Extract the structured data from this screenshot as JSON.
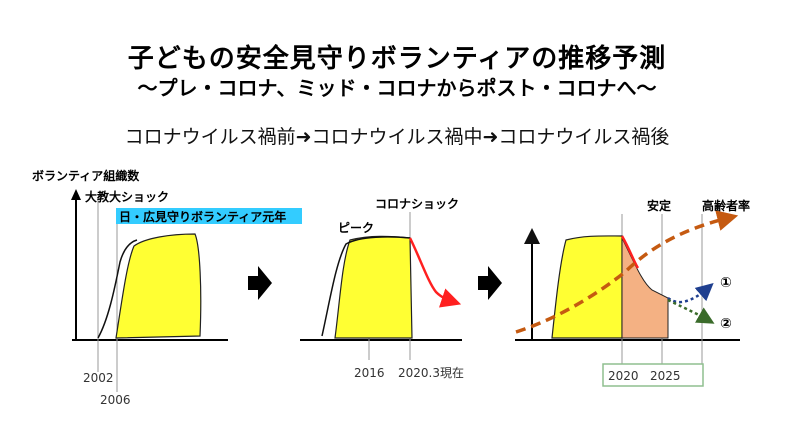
{
  "header": {
    "title": "子どもの安全見守りボランティアの推移予測",
    "subtitle": "〜プレ・コロナ、ミッド・コロナからポスト・コロナへ〜",
    "flow": "コロナウイルス禍前➜コロナウイルス禍中➜コロナウイルス禍後"
  },
  "panel1": {
    "ylabel": "ボランティア組織数",
    "event_label": "大教大ショック",
    "highlight_label": "日・広見守りボランティア元年",
    "tick_2002": "2002",
    "tick_2006": "2006"
  },
  "panel2": {
    "peak_label": "ピーク",
    "shock_label": "コロナショック",
    "tick_2016": "2016",
    "tick_2020": "2020.3現在"
  },
  "panel3": {
    "stable_label": "安定",
    "aging_label": "高齢者率",
    "scenario1": "①",
    "scenario2": "②",
    "tick_2020": "2020",
    "tick_2025": "2025"
  },
  "colors": {
    "area_fill": "#ffff33",
    "highlight": "#33ccff",
    "decline": "#ff2020",
    "forecast_fill": "#f4b183",
    "aging_line": "#c55a11",
    "scenario1_line": "#1f3f8f",
    "scenario2_line": "#3a6b2a",
    "year_box": "#8fbf8f"
  }
}
